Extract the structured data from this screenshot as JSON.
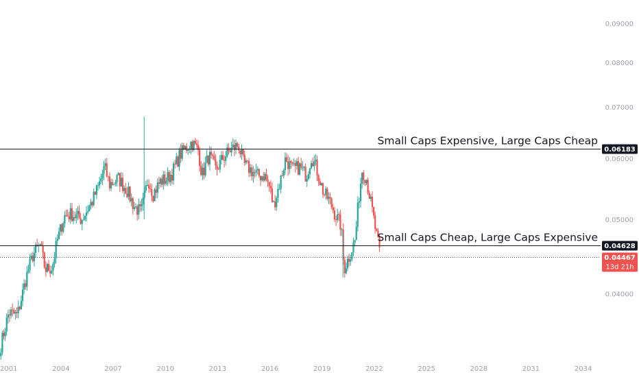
{
  "chart_data": {
    "type": "candlestick",
    "x_axis": {
      "tick_labels": [
        "2001",
        "2004",
        "2007",
        "2010",
        "2013",
        "2016",
        "2019",
        "2022",
        "2025",
        "2028",
        "2031",
        "2034"
      ],
      "range": [
        2000.5,
        2035.0
      ]
    },
    "y_axis": {
      "tick_labels": [
        "0.04000",
        "0.05000",
        "0.06000",
        "0.07000",
        "0.08000",
        "0.09000"
      ],
      "tick_values": [
        0.04,
        0.05,
        0.06,
        0.07,
        0.08,
        0.09
      ],
      "range": [
        0.0335,
        0.0945
      ],
      "scale": "log",
      "position": "right"
    },
    "anchors": [
      [
        2000.55,
        0.0343
      ],
      [
        2001.0,
        0.0378
      ],
      [
        2001.5,
        0.0375
      ],
      [
        2002.0,
        0.042
      ],
      [
        2002.4,
        0.045
      ],
      [
        2002.8,
        0.0463
      ],
      [
        2003.1,
        0.043
      ],
      [
        2003.5,
        0.0433
      ],
      [
        2003.8,
        0.047
      ],
      [
        2004.2,
        0.0505
      ],
      [
        2004.6,
        0.0508
      ],
      [
        2005.2,
        0.05
      ],
      [
        2005.8,
        0.0528
      ],
      [
        2006.2,
        0.0555
      ],
      [
        2006.5,
        0.0585
      ],
      [
        2006.8,
        0.0555
      ],
      [
        2007.3,
        0.0565
      ],
      [
        2007.8,
        0.0545
      ],
      [
        2008.2,
        0.052
      ],
      [
        2008.6,
        0.051
      ],
      [
        2008.8,
        0.0535
      ],
      [
        2009.0,
        0.0565
      ],
      [
        2009.3,
        0.054
      ],
      [
        2009.7,
        0.056
      ],
      [
        2010.1,
        0.0565
      ],
      [
        2010.4,
        0.0575
      ],
      [
        2010.8,
        0.0605
      ],
      [
        2011.2,
        0.062
      ],
      [
        2011.5,
        0.063
      ],
      [
        2011.9,
        0.0615
      ],
      [
        2012.1,
        0.057
      ],
      [
        2012.5,
        0.0605
      ],
      [
        2012.9,
        0.058
      ],
      [
        2013.3,
        0.06
      ],
      [
        2013.7,
        0.0615
      ],
      [
        2014.2,
        0.0625
      ],
      [
        2014.5,
        0.059
      ],
      [
        2014.9,
        0.058
      ],
      [
        2015.3,
        0.057
      ],
      [
        2015.7,
        0.057
      ],
      [
        2016.0,
        0.055
      ],
      [
        2016.2,
        0.052
      ],
      [
        2016.6,
        0.056
      ],
      [
        2016.9,
        0.06
      ],
      [
        2017.3,
        0.058
      ],
      [
        2017.7,
        0.0585
      ],
      [
        2018.1,
        0.057
      ],
      [
        2018.4,
        0.0605
      ],
      [
        2018.7,
        0.058
      ],
      [
        2019.1,
        0.054
      ],
      [
        2019.4,
        0.053
      ],
      [
        2019.8,
        0.0505
      ],
      [
        2020.1,
        0.049
      ],
      [
        2020.25,
        0.043
      ],
      [
        2020.6,
        0.045
      ],
      [
        2020.9,
        0.047
      ],
      [
        2021.1,
        0.053
      ],
      [
        2021.3,
        0.058
      ],
      [
        2021.55,
        0.0565
      ],
      [
        2021.9,
        0.051
      ],
      [
        2022.1,
        0.048
      ],
      [
        2022.35,
        0.0447
      ]
    ],
    "spikes": [
      {
        "year": 2008.78,
        "high": 0.068,
        "low": 0.05
      },
      {
        "year": 2020.2,
        "high": 0.048,
        "low": 0.042
      }
    ],
    "horizontal_lines": [
      {
        "value": 0.06183,
        "label": "0.06183",
        "annotation": "Small Caps Expensive, Large Caps Cheap"
      },
      {
        "value": 0.04628,
        "label": "0.04628",
        "annotation": "Small Caps Cheap, Large Caps Expensive"
      }
    ],
    "current_price": {
      "value": 0.04467,
      "label": "0.04467",
      "countdown": "13d 21h"
    },
    "colors": {
      "up": "#26a69a",
      "down": "#ef5350",
      "line": "#131722",
      "axis_text": "#9aa0ab"
    }
  }
}
